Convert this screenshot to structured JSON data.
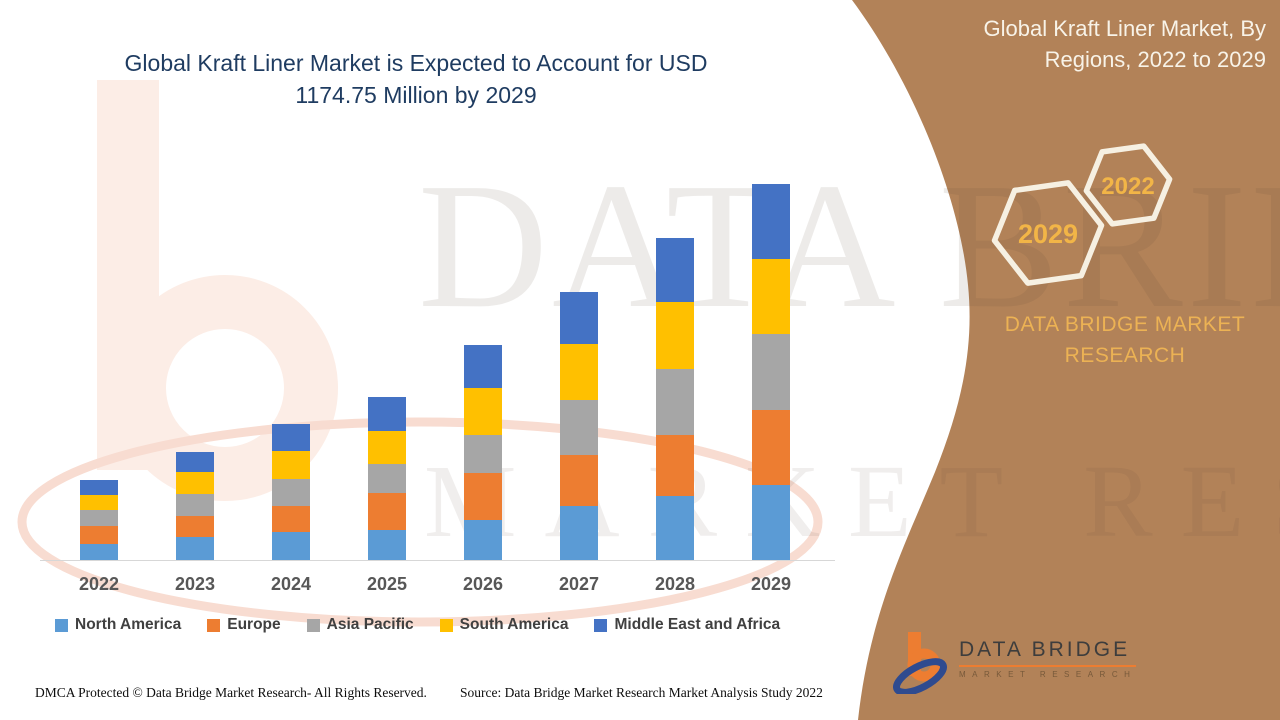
{
  "page": {
    "title_line1": "Global Kraft Liner Market is Expected to Account for USD",
    "title_line2": "1174.75 Million by 2029"
  },
  "side_panel": {
    "heading_line1": "Global Kraft Liner Market, By",
    "heading_line2": "Regions, 2022 to 2029",
    "hexagon_big_label": "2029",
    "hexagon_small_label": "2022",
    "brand_line1": "DATA BRIDGE MARKET",
    "brand_line2": "RESEARCH",
    "panel_color": "#B28258",
    "accent_text_color": "#EFB54B"
  },
  "watermarks": {
    "line1": "DATA BRIDGE",
    "line2": "MARKET RESEARCH"
  },
  "chart_data": {
    "type": "bar",
    "stacked": true,
    "unit": "USD Million",
    "title": "Global Kraft Liner Market, By Regions, 2022 to 2029",
    "xlabel": "",
    "ylabel": "",
    "value_axis_visible": false,
    "gridlines": false,
    "legend_position": "bottom",
    "categories": [
      "2022",
      "2023",
      "2024",
      "2025",
      "2026",
      "2027",
      "2028",
      "2029"
    ],
    "series": [
      {
        "name": "North America",
        "color": "#5B9BD5",
        "values": [
          50,
          71,
          86,
          93,
          126,
          170,
          199,
          235
        ]
      },
      {
        "name": "Europe",
        "color": "#ED7D31",
        "values": [
          57,
          65,
          83,
          118,
          145,
          158,
          193,
          233
        ]
      },
      {
        "name": "Asia Pacific",
        "color": "#A6A6A6",
        "values": [
          50,
          71,
          83,
          90,
          120,
          173,
          205,
          238
        ]
      },
      {
        "name": "South America",
        "color": "#FFC000",
        "values": [
          47,
          69,
          88,
          103,
          148,
          173,
          208,
          236
        ]
      },
      {
        "name": "Middle East and Africa",
        "color": "#4472C4",
        "values": [
          47,
          61,
          85,
          105,
          133,
          163,
          201,
          232.75
        ]
      }
    ],
    "totals": [
      251,
      337,
      425,
      509,
      672,
      837,
      1006,
      1174.75
    ],
    "ylim": [
      0,
      1200
    ]
  },
  "footer": {
    "dmca": "DMCA Protected © Data Bridge Market Research- All Rights Reserved.",
    "source": "Source: Data Bridge Market Research Market Analysis Study 2022"
  },
  "logo": {
    "name_line": "DATA BRIDGE",
    "sub_line": "MARKET RESEARCH"
  }
}
